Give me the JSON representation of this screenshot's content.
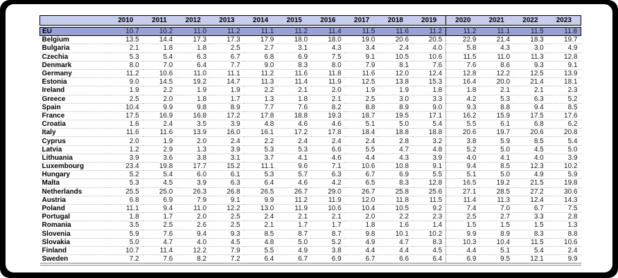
{
  "window": {
    "background": "#000000",
    "panel_background": "#ffffff"
  },
  "chart_data": {
    "type": "table",
    "title": "",
    "corner_label": "",
    "columns": [
      "2010",
      "2011",
      "2012",
      "2013",
      "2014",
      "2015",
      "2016",
      "2017",
      "2018",
      "2019",
      "2020",
      "2021",
      "2022",
      "2023"
    ],
    "divider_before_column": "2020",
    "highlight_row": "EU",
    "colors": {
      "header_fill": "#c7cdec",
      "highlight_fill": "#96a1d8",
      "outline": "#000000",
      "row_separator": "#bababa",
      "bottom_rule": "#7f7f7f",
      "value_text": "#1a1a1a"
    },
    "rows": [
      {
        "name": "EU",
        "values": [
          "10.7",
          "10.2",
          "11.0",
          "11.2",
          "11.1",
          "11.2",
          "11.4",
          "11.5",
          "11.6",
          "11.2",
          "11.2",
          "11.1",
          "11.5",
          "11.8"
        ]
      },
      {
        "name": "Belgium",
        "values": [
          "13.5",
          "14.4",
          "17.3",
          "17.3",
          "17.9",
          "18.0",
          "18.0",
          "19.0",
          "20.6",
          "20.5",
          "22.9",
          "21.4",
          "18.3",
          "19.7"
        ]
      },
      {
        "name": "Bulgaria",
        "values": [
          "2.1",
          "1.8",
          "1.8",
          "2.5",
          "2.7",
          "3.1",
          "4.3",
          "3.4",
          "2.4",
          "4.0",
          "5.8",
          "4.3",
          "3.0",
          "4.9"
        ]
      },
      {
        "name": "Czechia",
        "values": [
          "5.3",
          "5.4",
          "6.3",
          "6.7",
          "6.8",
          "6.9",
          "7.5",
          "9.1",
          "10.5",
          "10.6",
          "11.5",
          "11.0",
          "11.3",
          "12.8"
        ]
      },
      {
        "name": "Denmark",
        "values": [
          "8.0",
          "7.0",
          "6.4",
          "7.7",
          "9.0",
          "8.3",
          "8.0",
          "7.9",
          "8.1",
          "7.6",
          "7.6",
          "8.6",
          "9.3",
          "9.1"
        ]
      },
      {
        "name": "Germany",
        "values": [
          "11.2",
          "10.6",
          "11.0",
          "11.1",
          "11.2",
          "11.6",
          "11.8",
          "11.6",
          "12.0",
          "12.4",
          "12.8",
          "12.2",
          "12.5",
          "13.9"
        ]
      },
      {
        "name": "Estonia",
        "values": [
          "9.0",
          "14.5",
          "19.2",
          "14.7",
          "11.3",
          "11.4",
          "11.9",
          "12.5",
          "13.8",
          "15.3",
          "16.4",
          "20.0",
          "21.4",
          "18.1"
        ]
      },
      {
        "name": "Ireland",
        "values": [
          "1.9",
          "2.2",
          "1.9",
          "1.9",
          "2.2",
          "2.1",
          "2.0",
          "1.9",
          "1.9",
          "1.8",
          "1.8",
          "2.1",
          "2.1",
          "2.3"
        ]
      },
      {
        "name": "Greece",
        "values": [
          "2.5",
          "2.0",
          "1.8",
          "1.7",
          "1.3",
          "1.8",
          "2.1",
          "2.5",
          "3.0",
          "3.3",
          "4.2",
          "5.3",
          "6.3",
          "5.2"
        ]
      },
      {
        "name": "Spain",
        "values": [
          "10.4",
          "9.9",
          "9.8",
          "8.9",
          "7.7",
          "7.6",
          "8.2",
          "8.8",
          "8.9",
          "9.0",
          "9.3",
          "8.8",
          "9.4",
          "8.5"
        ]
      },
      {
        "name": "France",
        "values": [
          "17.5",
          "16.9",
          "16.8",
          "17.2",
          "17.8",
          "18.8",
          "19.3",
          "18.7",
          "19.5",
          "17.1",
          "16.2",
          "15.9",
          "17.5",
          "17.6"
        ]
      },
      {
        "name": "Croatia",
        "values": [
          "1.6",
          "2.4",
          "3.5",
          "3.9",
          "4.8",
          "4.6",
          "4.6",
          "5.1",
          "5.0",
          "5.4",
          "5.5",
          "6.1",
          "6.8",
          "6.2"
        ]
      },
      {
        "name": "Italy",
        "values": [
          "11.6",
          "11.6",
          "13.9",
          "16.0",
          "16.1",
          "17.2",
          "17.8",
          "18.4",
          "18.8",
          "18.8",
          "20.6",
          "19.7",
          "20.6",
          "20.8"
        ]
      },
      {
        "name": "Cyprus",
        "values": [
          "2.0",
          "1.9",
          "2.0",
          "2.4",
          "2.2",
          "2.4",
          "2.4",
          "2.4",
          "2.8",
          "3.2",
          "3.8",
          "5.9",
          "8.5",
          "5.4"
        ]
      },
      {
        "name": "Latvia",
        "values": [
          "1.2",
          "2.9",
          "1.3",
          "3.9",
          "5.3",
          "5.3",
          "6.6",
          "5.5",
          "4.7",
          "4.8",
          "5.2",
          "5.0",
          "4.5",
          "5.0"
        ]
      },
      {
        "name": "Lithuania",
        "values": [
          "3.9",
          "3.6",
          "3.8",
          "3.1",
          "3.7",
          "4.1",
          "4.6",
          "4.4",
          "4.3",
          "3.9",
          "4.0",
          "4.1",
          "4.0",
          "3.9"
        ]
      },
      {
        "name": "Luxembourg",
        "values": [
          "23.4",
          "19.8",
          "17.7",
          "15.2",
          "11.1",
          "9.6",
          "7.1",
          "10.6",
          "10.8",
          "9.1",
          "9.4",
          "8.5",
          "12.3",
          "10.2"
        ]
      },
      {
        "name": "Hungary",
        "values": [
          "5.2",
          "5.4",
          "6.0",
          "6.1",
          "5.3",
          "5.7",
          "6.3",
          "6.7",
          "6.9",
          "5.5",
          "5.1",
          "5.0",
          "4.9",
          "5.9"
        ]
      },
      {
        "name": "Malta",
        "values": [
          "5.3",
          "4.5",
          "3.9",
          "6.3",
          "6.4",
          "4.6",
          "4.2",
          "6.5",
          "8.3",
          "12.8",
          "16.5",
          "19.2",
          "21.5",
          "19.8"
        ]
      },
      {
        "name": "Netherlands",
        "values": [
          "25.5",
          "25.0",
          "26.3",
          "26.8",
          "26.5",
          "26.7",
          "29.0",
          "26.7",
          "25.8",
          "25.6",
          "27.1",
          "28.5",
          "27.2",
          "30.6"
        ]
      },
      {
        "name": "Austria",
        "values": [
          "6.8",
          "6.9",
          "7.9",
          "9.1",
          "9.9",
          "11.2",
          "11.9",
          "12.0",
          "11.8",
          "11.5",
          "11.4",
          "11.3",
          "12.4",
          "14.3"
        ]
      },
      {
        "name": "Poland",
        "values": [
          "11.1",
          "9.4",
          "11.0",
          "12.2",
          "13.0",
          "11.9",
          "10.6",
          "10.4",
          "10.5",
          "9.2",
          "7.4",
          "7.0",
          "6.7",
          "7.5"
        ]
      },
      {
        "name": "Portugal",
        "values": [
          "1.8",
          "1.7",
          "2.0",
          "2.5",
          "2.4",
          "2.1",
          "2.1",
          "2.0",
          "2.2",
          "2.3",
          "2.5",
          "2.7",
          "3.3",
          "2.8"
        ]
      },
      {
        "name": "Romania",
        "values": [
          "3.5",
          "2.5",
          "2.6",
          "2.5",
          "2.1",
          "1.7",
          "1.7",
          "1.8",
          "1.6",
          "1.4",
          "1.5",
          "1.5",
          "1.5",
          "1.3"
        ]
      },
      {
        "name": "Slovenia",
        "values": [
          "5.9",
          "7.6",
          "9.4",
          "9.3",
          "8.5",
          "8.7",
          "8.7",
          "9.8",
          "10.1",
          "10.2",
          "9.9",
          "8.9",
          "8.3",
          "8.8"
        ]
      },
      {
        "name": "Slovakia",
        "values": [
          "5.0",
          "4.7",
          "4.0",
          "4.5",
          "4.8",
          "5.0",
          "5.2",
          "4.9",
          "4.7",
          "8.3",
          "10.3",
          "10.4",
          "11.5",
          "10.6"
        ]
      },
      {
        "name": "Finland",
        "values": [
          "10.7",
          "11.4",
          "12.2",
          "7.9",
          "5.5",
          "4.9",
          "3.8",
          "4.4",
          "4.4",
          "4.5",
          "4.4",
          "5.1",
          "5.4",
          "2.4"
        ]
      },
      {
        "name": "Sweden",
        "values": [
          "7.2",
          "7.6",
          "8.2",
          "7.2",
          "6.4",
          "6.7",
          "6.9",
          "6.7",
          "6.6",
          "6.4",
          "6.9",
          "9.5",
          "12.1",
          "9.9"
        ]
      }
    ]
  }
}
